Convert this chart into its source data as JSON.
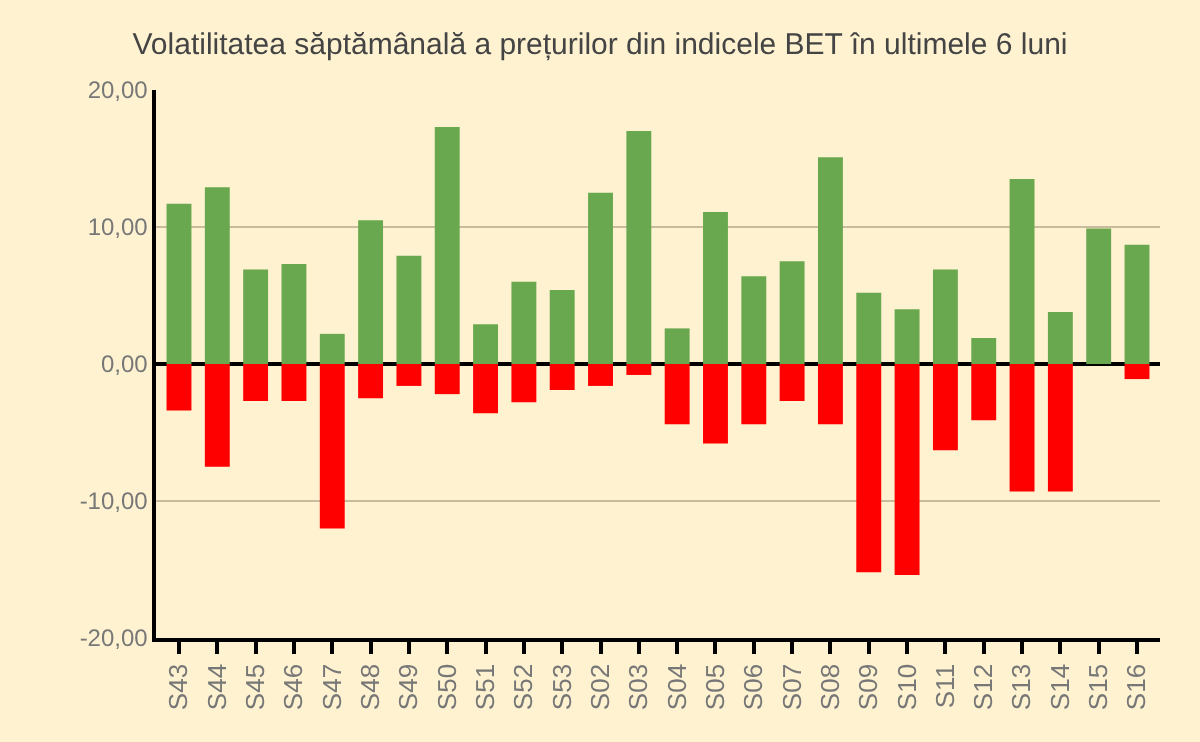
{
  "chart_data": {
    "type": "bar",
    "title": "Volatilitatea săptămânală a prețurilor din indicele BET în ultimele 6 luni",
    "categories": [
      "S43",
      "S44",
      "S45",
      "S46",
      "S47",
      "S48",
      "S49",
      "S50",
      "S51",
      "S52",
      "S53",
      "S02",
      "S03",
      "S04",
      "S05",
      "S06",
      "S07",
      "S08",
      "S09",
      "S10",
      "S11",
      "S12",
      "S13",
      "S14",
      "S15",
      "S16"
    ],
    "stacked": true,
    "series": [
      {
        "color": "#6aa84f",
        "values": [
          11.7,
          12.9,
          6.9,
          7.3,
          2.2,
          10.5,
          7.9,
          17.3,
          2.9,
          6.0,
          5.4,
          12.5,
          17.0,
          2.6,
          11.1,
          6.4,
          7.5,
          15.1,
          5.2,
          4.0,
          6.9,
          1.9,
          13.5,
          3.8,
          9.9,
          8.7
        ]
      },
      {
        "color": "#ff0000",
        "values": [
          -3.4,
          -7.5,
          -2.7,
          -2.7,
          -12.0,
          -2.5,
          -1.6,
          -2.2,
          -3.6,
          -2.8,
          -1.9,
          -1.6,
          -0.8,
          -4.4,
          -5.8,
          -4.4,
          -2.7,
          -4.4,
          -15.2,
          -15.4,
          -6.3,
          -4.1,
          -9.3,
          -9.3,
          null,
          -1.1
        ]
      }
    ],
    "ylim": [
      -20,
      20
    ],
    "yticks": [
      {
        "value": -20,
        "label": "-20,00"
      },
      {
        "value": -10,
        "label": "-10,00"
      },
      {
        "value": 0,
        "label": "0,00"
      },
      {
        "value": 10,
        "label": "10,00"
      },
      {
        "value": 20,
        "label": "20,00"
      }
    ],
    "grid": "y"
  }
}
